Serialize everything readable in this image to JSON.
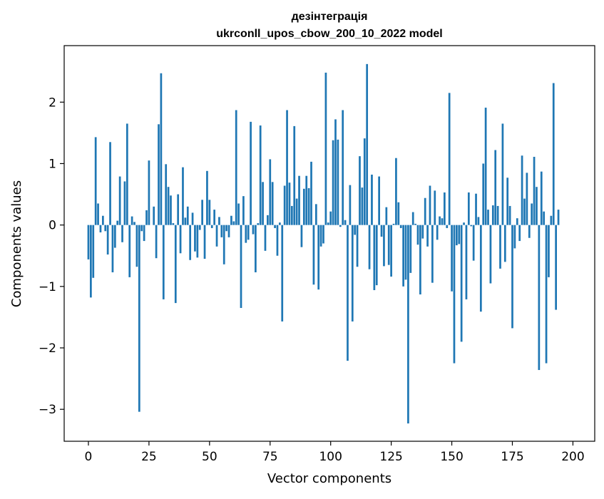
{
  "chart_data": {
    "type": "bar",
    "title_line1": "дезінтеграція",
    "title_line2": "ukrconll_upos_cbow_200_10_2022 model",
    "xlabel": "Vector components",
    "ylabel": "Components values",
    "xlim": [
      -10,
      209
    ],
    "ylim": [
      -3.52,
      2.92
    ],
    "xticks": [
      0,
      25,
      50,
      75,
      100,
      125,
      150,
      175,
      200
    ],
    "yticks": [
      -3,
      -2,
      -1,
      0,
      1,
      2
    ],
    "grid": false,
    "bar_color": "#1f77b4",
    "values": [
      -0.56,
      -1.18,
      -0.86,
      1.43,
      0.35,
      -0.12,
      0.15,
      -0.1,
      -0.48,
      1.35,
      -0.77,
      -0.37,
      0.07,
      0.79,
      -0.28,
      0.71,
      1.65,
      -0.85,
      0.14,
      0.05,
      -0.68,
      -3.04,
      -0.1,
      -0.26,
      0.24,
      1.05,
      0.0,
      0.3,
      -0.54,
      1.64,
      2.47,
      -1.21,
      0.99,
      0.62,
      0.48,
      0.03,
      -1.27,
      0.5,
      -0.46,
      0.94,
      0.12,
      0.3,
      -0.57,
      0.2,
      -0.43,
      -0.53,
      -0.08,
      0.41,
      -0.55,
      0.88,
      0.41,
      -0.05,
      0.25,
      -0.35,
      0.13,
      -0.2,
      -0.64,
      -0.1,
      -0.2,
      0.15,
      0.06,
      1.87,
      0.35,
      -1.35,
      0.47,
      -0.29,
      -0.24,
      1.68,
      -0.15,
      -0.77,
      0.03,
      1.62,
      0.7,
      -0.42,
      0.16,
      1.07,
      0.7,
      -0.05,
      -0.5,
      0.04,
      -1.57,
      0.64,
      1.87,
      0.69,
      0.31,
      1.61,
      0.43,
      0.8,
      -0.36,
      0.59,
      0.8,
      0.6,
      1.03,
      -0.97,
      0.34,
      -1.05,
      -0.35,
      -0.3,
      2.48,
      0.04,
      0.22,
      1.38,
      1.72,
      1.39,
      -0.03,
      1.87,
      0.08,
      -2.21,
      0.65,
      -1.57,
      -0.16,
      -0.68,
      1.12,
      0.61,
      1.41,
      2.62,
      -0.72,
      0.82,
      -1.06,
      -0.98,
      0.79,
      -0.19,
      -0.67,
      0.29,
      -0.65,
      -0.84,
      0.02,
      1.09,
      0.37,
      -0.05,
      -1.0,
      -0.89,
      -3.23,
      -0.78,
      0.21,
      0.02,
      -0.32,
      -1.13,
      -0.22,
      0.44,
      -0.35,
      0.64,
      -0.94,
      0.56,
      -0.24,
      0.14,
      0.11,
      0.53,
      -0.05,
      2.15,
      -1.08,
      -2.25,
      -0.33,
      -0.31,
      -1.9,
      0.04,
      -1.21,
      0.53,
      -0.02,
      -0.58,
      0.51,
      0.13,
      -1.41,
      1.0,
      1.91,
      0.25,
      -0.95,
      0.32,
      1.22,
      0.31,
      -0.71,
      1.65,
      -0.6,
      0.77,
      0.31,
      -1.68,
      -0.38,
      0.11,
      -0.26,
      1.13,
      0.43,
      0.85,
      -0.21,
      0.35,
      1.11,
      0.62,
      -2.36,
      0.87,
      0.22,
      -2.25,
      -0.85,
      0.15,
      2.31,
      -1.38,
      0.25
    ]
  }
}
